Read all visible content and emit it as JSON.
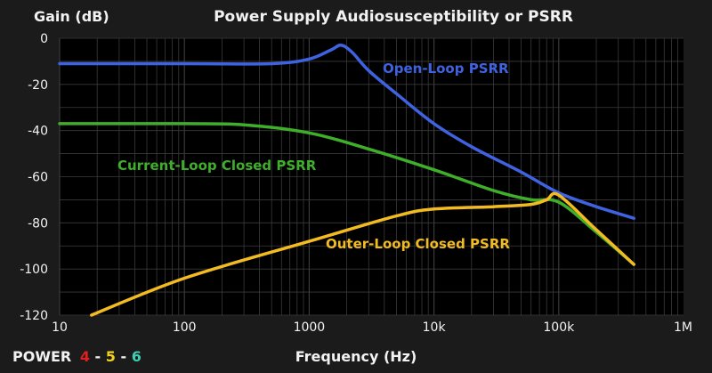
{
  "chart_data": {
    "type": "line",
    "title": "Power Supply Audiosusceptibility or PSRR",
    "ylabel": "Gain (dB)",
    "xlabel": "Frequency (Hz)",
    "x_scale": "log",
    "xlim": [
      10,
      1000000
    ],
    "ylim": [
      -120,
      0
    ],
    "x_ticks": [
      {
        "value": 10,
        "label": "10"
      },
      {
        "value": 100,
        "label": "100"
      },
      {
        "value": 1000,
        "label": "1000"
      },
      {
        "value": 10000,
        "label": "10k"
      },
      {
        "value": 100000,
        "label": "100k"
      },
      {
        "value": 1000000,
        "label": "1M"
      }
    ],
    "y_ticks": [
      0,
      -20,
      -40,
      -60,
      -80,
      -100,
      -120
    ],
    "grid": true,
    "series": [
      {
        "name": "Open-Loop PSRR",
        "color": "#3f63e0",
        "points": [
          [
            10,
            -11
          ],
          [
            100,
            -11
          ],
          [
            500,
            -11
          ],
          [
            1000,
            -9
          ],
          [
            1500,
            -5
          ],
          [
            1800,
            -3
          ],
          [
            2200,
            -6
          ],
          [
            3000,
            -14
          ],
          [
            5000,
            -24
          ],
          [
            10000,
            -37
          ],
          [
            20000,
            -47
          ],
          [
            50000,
            -58
          ],
          [
            100000,
            -67
          ],
          [
            200000,
            -73
          ],
          [
            400000,
            -78
          ]
        ]
      },
      {
        "name": "Current-Loop Closed PSRR",
        "color": "#3fae2a",
        "points": [
          [
            10,
            -37
          ],
          [
            100,
            -37
          ],
          [
            300,
            -37.5
          ],
          [
            1000,
            -41
          ],
          [
            3000,
            -48
          ],
          [
            10000,
            -57
          ],
          [
            30000,
            -66
          ],
          [
            60000,
            -70
          ],
          [
            100000,
            -71
          ],
          [
            200000,
            -84
          ],
          [
            400000,
            -98
          ]
        ]
      },
      {
        "name": "Outer-Loop Closed PSRR",
        "color": "#f2bb22",
        "points": [
          [
            18,
            -120
          ],
          [
            100,
            -104
          ],
          [
            1000,
            -88
          ],
          [
            5000,
            -77
          ],
          [
            10000,
            -74
          ],
          [
            30000,
            -73
          ],
          [
            60000,
            -72
          ],
          [
            80000,
            -70
          ],
          [
            100000,
            -68
          ],
          [
            200000,
            -83
          ],
          [
            400000,
            -98
          ]
        ]
      }
    ]
  },
  "series_labels": {
    "open_loop": "Open-Loop PSRR",
    "current_loop": "Current-Loop Closed PSRR",
    "outer_loop": "Outer-Loop Closed PSRR"
  },
  "brand": {
    "word": "POWER",
    "num1": "4",
    "sep1": "-",
    "num2": "5",
    "sep2": "-",
    "num3": "6",
    "colors": {
      "word": "#f2f2f2",
      "num1": "#e02020",
      "num2": "#f2d21e",
      "num3": "#3fd0b0",
      "sep": "#f2f2f2"
    }
  },
  "colors": {
    "background": "#1b1b1b",
    "plot_background": "#000000",
    "grid": "#3a3a3a",
    "text": "#f2f2f2"
  }
}
